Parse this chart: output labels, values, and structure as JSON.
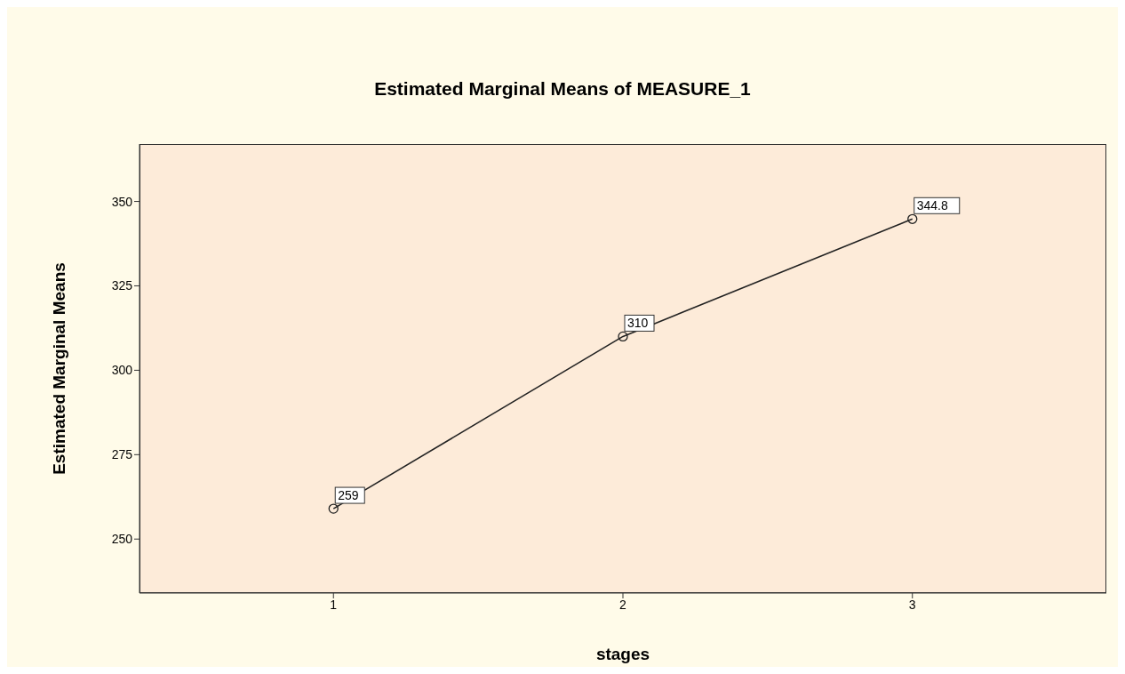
{
  "chart_data": {
    "type": "line",
    "title": "Estimated Marginal Means of MEASURE_1",
    "xlabel": "stages",
    "ylabel": "Estimated Marginal Means",
    "x": [
      1,
      2,
      3
    ],
    "series": [
      {
        "color": "#222222",
        "values": [
          259,
          310,
          344.8
        ]
      }
    ],
    "xlim": [
      0.33,
      3.67
    ],
    "xticks": [
      1,
      2,
      3
    ],
    "ylim": [
      234,
      367
    ],
    "yticks": [
      250,
      275,
      300,
      325,
      350
    ],
    "data_labels": true,
    "marker": "circle",
    "line_style": "solid"
  }
}
